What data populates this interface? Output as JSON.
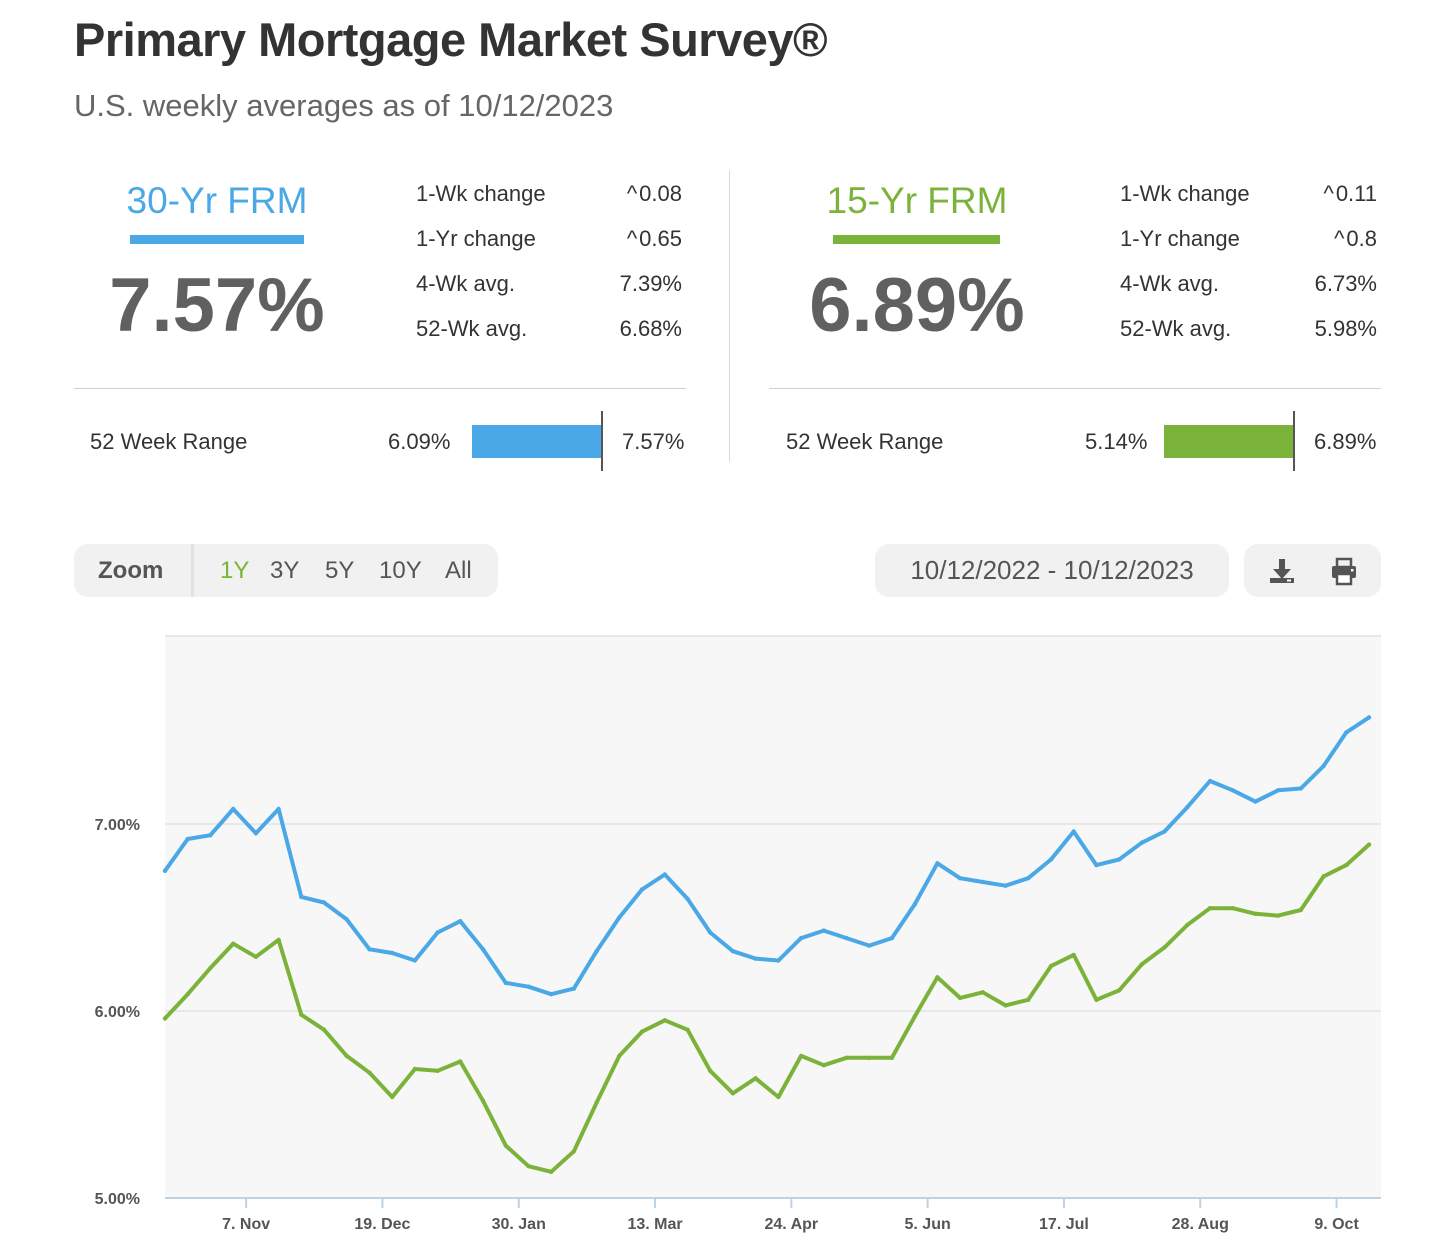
{
  "header": {
    "title": "Primary Mortgage Market Survey®",
    "subtitle": "U.S. weekly averages as of 10/12/2023"
  },
  "rates": [
    {
      "name": "30-Yr FRM",
      "color": "#4aa8e6",
      "value": "7.57%",
      "stats": [
        {
          "label": "1-Wk change",
          "value": "0.08",
          "trend": "up"
        },
        {
          "label": "1-Yr change",
          "value": "0.65",
          "trend": "up"
        },
        {
          "label": "4-Wk avg.",
          "value": "7.39%"
        },
        {
          "label": "52-Wk avg.",
          "value": "6.68%"
        }
      ],
      "range": {
        "label": "52 Week Range",
        "low": "6.09%",
        "high": "7.57%"
      }
    },
    {
      "name": "15-Yr FRM",
      "color": "#7bb33a",
      "value": "6.89%",
      "stats": [
        {
          "label": "1-Wk change",
          "value": "0.11",
          "trend": "up"
        },
        {
          "label": "1-Yr change",
          "value": "0.8",
          "trend": "up"
        },
        {
          "label": "4-Wk avg.",
          "value": "6.73%"
        },
        {
          "label": "52-Wk avg.",
          "value": "5.98%"
        }
      ],
      "range": {
        "label": "52 Week Range",
        "low": "5.14%",
        "high": "6.89%"
      }
    }
  ],
  "toolbar": {
    "zoom_label": "Zoom",
    "zoom_options": [
      "1Y",
      "3Y",
      "5Y",
      "10Y",
      "All"
    ],
    "zoom_selected": "1Y",
    "date_range": "10/12/2022 - 10/12/2023",
    "icons": [
      "download-icon",
      "print-icon"
    ]
  },
  "chart_data": {
    "type": "line",
    "x_start": "2022-10-13",
    "x_step_days": 7,
    "x_tick_labels": [
      "7. Nov",
      "19. Dec",
      "30. Jan",
      "13. Mar",
      "24. Apr",
      "5. Jun",
      "17. Jul",
      "28. Aug",
      "9. Oct"
    ],
    "y_ticks": [
      "5.00%",
      "6.00%",
      "7.00%"
    ],
    "ylim": [
      5.0,
      8.0
    ],
    "grid": true,
    "legend": "none",
    "series": [
      {
        "name": "30-Yr FRM",
        "color": "#4aa8e6",
        "values": [
          6.75,
          6.92,
          6.94,
          7.08,
          6.95,
          7.08,
          6.61,
          6.58,
          6.49,
          6.33,
          6.31,
          6.27,
          6.42,
          6.48,
          6.33,
          6.15,
          6.13,
          6.09,
          6.12,
          6.32,
          6.5,
          6.65,
          6.73,
          6.6,
          6.42,
          6.32,
          6.28,
          6.27,
          6.39,
          6.43,
          6.39,
          6.35,
          6.39,
          6.57,
          6.79,
          6.71,
          6.69,
          6.67,
          6.71,
          6.81,
          6.96,
          6.78,
          6.81,
          6.9,
          6.96,
          7.09,
          7.23,
          7.18,
          7.12,
          7.18,
          7.19,
          7.31,
          7.49,
          7.57
        ]
      },
      {
        "name": "15-Yr FRM",
        "color": "#7bb33a",
        "values": [
          5.96,
          6.09,
          6.23,
          6.36,
          6.29,
          6.38,
          5.98,
          5.9,
          5.76,
          5.67,
          5.54,
          5.69,
          5.68,
          5.73,
          5.52,
          5.28,
          5.17,
          5.14,
          5.25,
          5.51,
          5.76,
          5.89,
          5.95,
          5.9,
          5.68,
          5.56,
          5.64,
          5.54,
          5.76,
          5.71,
          5.75,
          5.75,
          5.75,
          5.97,
          6.18,
          6.07,
          6.1,
          6.03,
          6.06,
          6.24,
          6.3,
          6.06,
          6.11,
          6.25,
          6.34,
          6.46,
          6.55,
          6.55,
          6.52,
          6.51,
          6.54,
          6.72,
          6.78,
          6.89
        ]
      }
    ]
  }
}
